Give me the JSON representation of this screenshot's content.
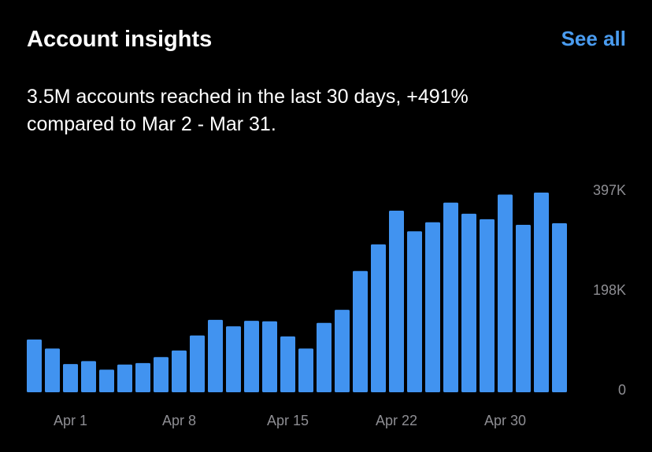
{
  "header": {
    "title": "Account insights",
    "action": "See all",
    "subtitle": [
      "3.5M accounts reached in the last 30 days, +491%",
      "compared to Mar 2 - Mar 31."
    ]
  },
  "chart_data": {
    "type": "bar",
    "color": "#4193f0",
    "categories": [
      null,
      null,
      "Apr 1",
      null,
      null,
      null,
      null,
      null,
      "Apr 8",
      null,
      null,
      null,
      null,
      null,
      "Apr 15",
      null,
      null,
      null,
      null,
      null,
      "Apr 22",
      null,
      null,
      null,
      null,
      null,
      "Apr 30",
      null,
      null,
      null
    ],
    "values": [
      105000,
      87000,
      56000,
      62000,
      45000,
      55000,
      58000,
      70000,
      83000,
      113000,
      144000,
      131000,
      142000,
      141000,
      111000,
      87000,
      138000,
      164000,
      241000,
      294000,
      361000,
      320000,
      338000,
      377000,
      355000,
      344000,
      393000,
      333000,
      397000,
      336000
    ],
    "ylim": [
      0,
      397000
    ],
    "yticks": [
      0,
      {
        "value": 198000,
        "label": "198K"
      },
      {
        "value": 397000,
        "label": "397K"
      }
    ],
    "grid": false
  }
}
